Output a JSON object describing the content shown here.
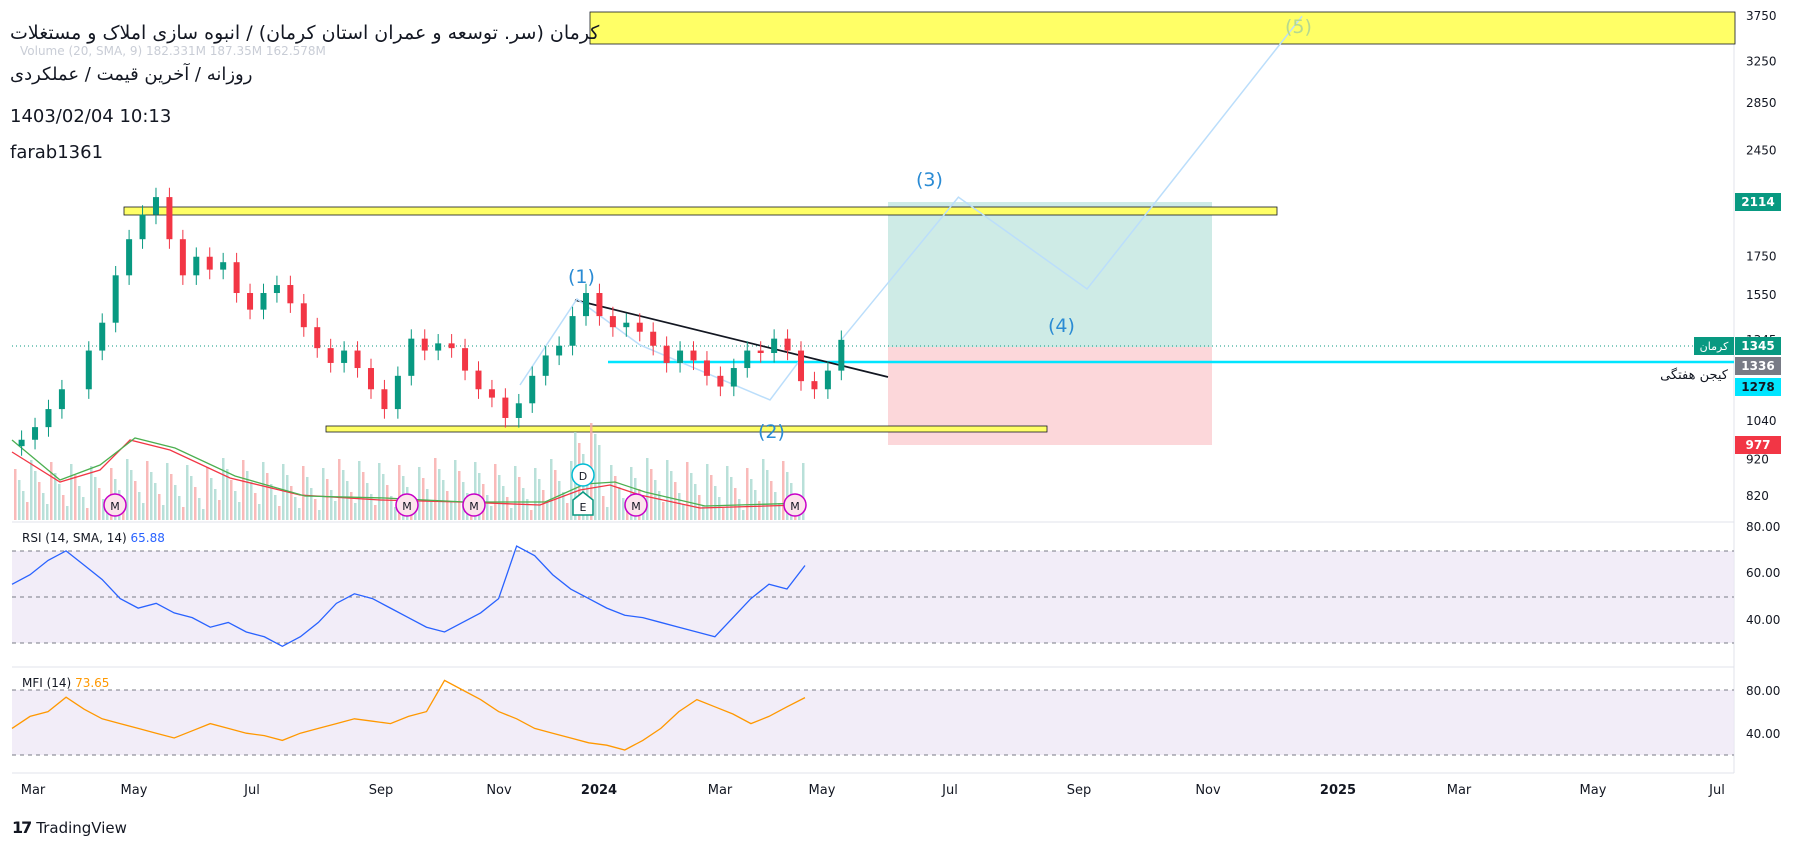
{
  "header": {
    "title": "کرمان (سر. توسعه و عمران استان کرمان) / انبوه سازی املاک و مستغلات",
    "subtitle": "روزانه / آخرین قیمت / عملکردی",
    "datetime": "1403/02/04 10:13",
    "author": "farab1361",
    "volume_ghost": "Volume (20, SMA, 9)  182.331M  187.35M  162.578M"
  },
  "indicators": {
    "rsi": {
      "label": "RSI (14, SMA, 14)",
      "value": "65.88",
      "color": "#2962ff"
    },
    "mfi": {
      "label": "MFI (14)",
      "value": "73.65",
      "color": "#ff9800"
    }
  },
  "footer": {
    "brand": "TradingView"
  },
  "chart_data": [
    {
      "type": "line",
      "panel": "price",
      "symbol": "کرمان",
      "x_axis_ticks": [
        "Mar",
        "May",
        "Jul",
        "Sep",
        "Nov",
        "2024",
        "Mar",
        "May",
        "Jul",
        "Sep",
        "Nov",
        "2025",
        "Mar",
        "May",
        "Jul"
      ],
      "y_axis_ticks": [
        3750,
        3250,
        2850,
        2450,
        2050,
        1750,
        1550,
        1345,
        1040,
        920,
        820
      ],
      "y_scale": "log",
      "ylim": [
        760,
        3800
      ],
      "price_tags": [
        {
          "value": "2114",
          "color": "#089981"
        },
        {
          "value": "1345",
          "color": "#089981",
          "label": "کرمان"
        },
        {
          "value": "1336",
          "color": "#787b86"
        },
        {
          "value": "1278",
          "color": "#00e5ff",
          "label": "کیجن هفتگی"
        },
        {
          "value": "977",
          "color": "#f23645"
        }
      ],
      "wave_labels": [
        "(1)",
        "(2)",
        "(3)",
        "(4)",
        "(5)"
      ],
      "candles": [
        [
          "2023-02-20",
          980
        ],
        [
          "2023-02-27",
          1020
        ],
        [
          "2023-03-06",
          1080
        ],
        [
          "2023-03-13",
          1150
        ],
        [
          "2023-03-27",
          1300
        ],
        [
          "2023-04-03",
          1420
        ],
        [
          "2023-04-10",
          1650
        ],
        [
          "2023-04-17",
          1850
        ],
        [
          "2023-04-24",
          2000
        ],
        [
          "2023-05-01",
          2114
        ],
        [
          "2023-05-08",
          1850
        ],
        [
          "2023-05-15",
          1650
        ],
        [
          "2023-05-22",
          1750
        ],
        [
          "2023-05-29",
          1680
        ],
        [
          "2023-06-05",
          1720
        ],
        [
          "2023-06-12",
          1560
        ],
        [
          "2023-06-19",
          1480
        ],
        [
          "2023-06-26",
          1560
        ],
        [
          "2023-07-03",
          1600
        ],
        [
          "2023-07-10",
          1510
        ],
        [
          "2023-07-17",
          1400
        ],
        [
          "2023-07-24",
          1310
        ],
        [
          "2023-07-31",
          1250
        ],
        [
          "2023-08-07",
          1300
        ],
        [
          "2023-08-14",
          1230
        ],
        [
          "2023-08-21",
          1150
        ],
        [
          "2023-08-28",
          1080
        ],
        [
          "2023-09-04",
          1200
        ],
        [
          "2023-09-11",
          1350
        ],
        [
          "2023-09-18",
          1300
        ],
        [
          "2023-09-25",
          1330
        ],
        [
          "2023-10-02",
          1310
        ],
        [
          "2023-10-09",
          1220
        ],
        [
          "2023-10-16",
          1150
        ],
        [
          "2023-10-23",
          1120
        ],
        [
          "2023-10-30",
          1050
        ],
        [
          "2023-11-06",
          1100
        ],
        [
          "2023-11-13",
          1200
        ],
        [
          "2023-11-20",
          1280
        ],
        [
          "2023-11-27",
          1320
        ],
        [
          "2023-12-04",
          1450
        ],
        [
          "2023-12-11",
          1560
        ],
        [
          "2023-12-18",
          1450
        ],
        [
          "2023-12-25",
          1400
        ],
        [
          "2024-01-01",
          1420
        ],
        [
          "2024-01-08",
          1380
        ],
        [
          "2024-01-15",
          1320
        ],
        [
          "2024-01-22",
          1250
        ],
        [
          "2024-01-29",
          1300
        ],
        [
          "2024-02-05",
          1260
        ],
        [
          "2024-02-12",
          1200
        ],
        [
          "2024-02-19",
          1160
        ],
        [
          "2024-02-26",
          1230
        ],
        [
          "2024-03-04",
          1300
        ],
        [
          "2024-03-11",
          1290
        ],
        [
          "2024-03-18",
          1350
        ],
        [
          "2024-03-25",
          1300
        ],
        [
          "2024-04-01",
          1180
        ],
        [
          "2024-04-08",
          1150
        ],
        [
          "2024-04-15",
          1220
        ],
        [
          "2024-04-22",
          1345
        ]
      ],
      "projection_path": [
        [
          "2024-04-22",
          1345
        ],
        [
          "2024-06-22",
          2114
        ],
        [
          "2024-08-28",
          1580
        ],
        [
          "2024-12-18",
          3750
        ]
      ]
    },
    {
      "type": "line",
      "panel": "rsi",
      "name": "RSI (14, SMA, 14)",
      "y_axis_ticks": [
        "80.00",
        "60.00",
        "40.00"
      ],
      "ylim": [
        25,
        82
      ],
      "values": [
        58,
        62,
        68,
        72,
        66,
        60,
        52,
        48,
        50,
        46,
        44,
        40,
        42,
        38,
        36,
        32,
        36,
        42,
        50,
        54,
        52,
        48,
        44,
        40,
        38,
        42,
        46,
        52,
        74,
        70,
        62,
        56,
        52,
        48,
        45,
        44,
        42,
        40,
        38,
        36,
        44,
        52,
        58,
        56,
        65.88
      ]
    },
    {
      "type": "line",
      "panel": "mfi",
      "name": "MFI (14)",
      "y_axis_ticks": [
        "80.00",
        "40.00"
      ],
      "ylim": [
        15,
        95
      ],
      "values": [
        48,
        58,
        62,
        74,
        64,
        56,
        52,
        48,
        44,
        40,
        46,
        52,
        48,
        44,
        42,
        38,
        44,
        48,
        52,
        56,
        54,
        52,
        58,
        62,
        88,
        80,
        72,
        62,
        56,
        48,
        44,
        40,
        36,
        34,
        30,
        38,
        48,
        62,
        72,
        66,
        60,
        52,
        58,
        66,
        73.65
      ]
    }
  ]
}
